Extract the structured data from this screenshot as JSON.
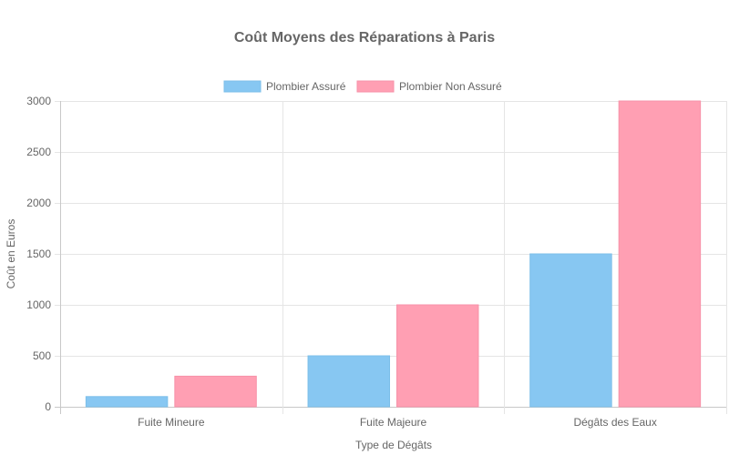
{
  "chart_data": {
    "type": "bar",
    "title": "Coût Moyens des Réparations à Paris",
    "xlabel": "Type de Dégâts",
    "ylabel": "Coût en Euros",
    "categories": [
      "Fuite Mineure",
      "Fuite Majeure",
      "Dégâts des Eaux"
    ],
    "series": [
      {
        "name": "Plombier Assuré",
        "values": [
          100,
          500,
          1500
        ],
        "color": "#87c7f2",
        "border": "#7cbfe9"
      },
      {
        "name": "Plombier Non Assuré",
        "values": [
          300,
          1000,
          3000
        ],
        "color": "#ff9fb3",
        "border": "#f792a8"
      }
    ],
    "ylim": [
      0,
      3000
    ],
    "yticks": [
      0,
      500,
      1000,
      1500,
      2000,
      2500,
      3000
    ],
    "grid": true,
    "legend_position": "top"
  }
}
